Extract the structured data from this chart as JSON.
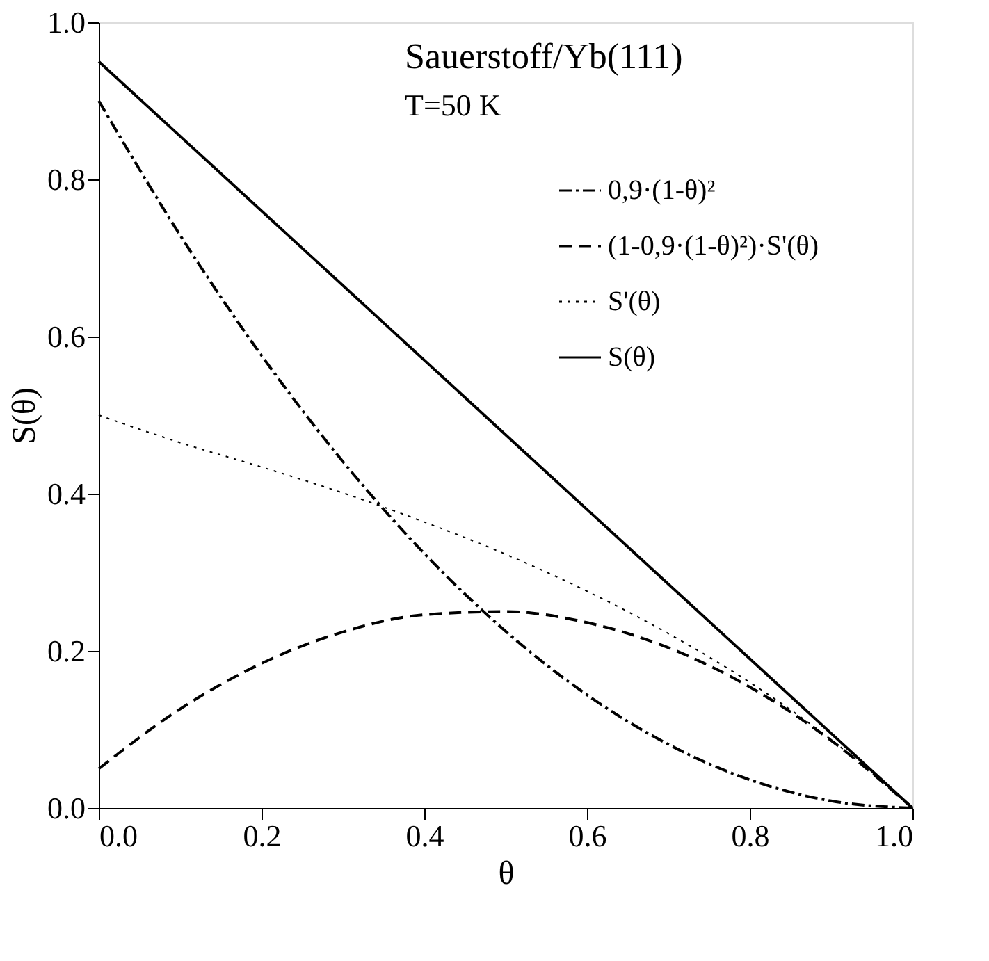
{
  "chart_data": {
    "type": "line",
    "xlabel": "θ",
    "ylabel": "S(θ)",
    "annotations": [
      "Sauerstoff/Yb(111)",
      "T=50 K"
    ],
    "x": [
      0,
      0.1,
      0.2,
      0.3,
      0.4,
      0.5,
      0.6,
      0.7,
      0.8,
      0.9,
      1.0
    ],
    "xlim": [
      0,
      1
    ],
    "ylim": [
      0,
      1
    ],
    "xticks": [
      {
        "value": 0,
        "label": "0.0"
      },
      0.2,
      0.4,
      0.6,
      0.8,
      {
        "value": 1,
        "label": "1.0"
      }
    ],
    "yticks": [
      {
        "value": 0,
        "label": "0.0"
      },
      0.2,
      0.4,
      0.6,
      0.8,
      {
        "value": 1,
        "label": "1.0"
      }
    ],
    "grid": false,
    "legend": "top right",
    "marker": "none",
    "series": [
      {
        "name": "0,9·(1-θ)²",
        "color": "#000000",
        "line_style": "dashdot",
        "values": [
          0.9,
          0.729,
          0.576,
          0.441,
          0.324,
          0.225,
          0.144,
          0.081,
          0.036,
          0.009,
          0
        ]
      },
      {
        "name": "(1-0,9·(1-θ)²)·S'(θ)",
        "color": "#000000",
        "line_style": "dashed",
        "values": [
          0.05,
          0.126,
          0.184,
          0.224,
          0.246,
          0.25,
          0.236,
          0.204,
          0.154,
          0.086,
          0
        ]
      },
      {
        "name": "S'(θ)",
        "color": "#000000",
        "line_style": "dotted",
        "values": [
          0.5,
          0.465,
          0.434,
          0.401,
          0.364,
          0.323,
          0.276,
          0.222,
          0.16,
          0.087,
          0
        ]
      },
      {
        "name": "S(θ)",
        "color": "#000000",
        "line_style": "solid",
        "values": [
          0.95,
          0.855,
          0.76,
          0.665,
          0.57,
          0.475,
          0.38,
          0.285,
          0.19,
          0.095,
          0
        ]
      }
    ]
  }
}
